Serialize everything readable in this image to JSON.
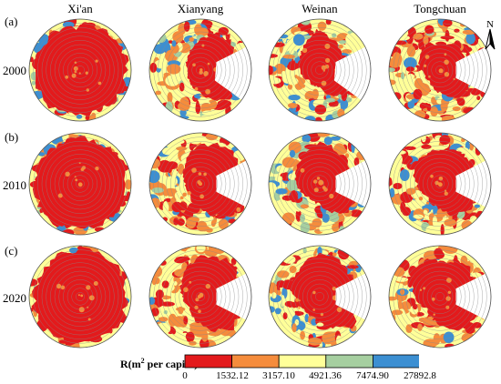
{
  "columns": [
    "Xi'an",
    "Xianyang",
    "Weinan",
    "Tongchuan"
  ],
  "rows": [
    {
      "tag": "(a)",
      "year": "2000"
    },
    {
      "tag": "(b)",
      "year": "2010"
    },
    {
      "tag": "(c)",
      "year": "2020"
    }
  ],
  "north_arrow": {
    "letter": "N"
  },
  "legend": {
    "title_main": "R(m",
    "title_sup": "2",
    "title_rest": " per capita)",
    "breaks": [
      "0",
      "1532.12",
      "3157.10",
      "4921.36",
      "7474.90",
      "27892.8"
    ],
    "colors": [
      "#e31a1c",
      "#f58c3c",
      "#ffff99",
      "#a6cfa0",
      "#3c8fd2"
    ]
  },
  "map_colors": {
    "ring_line": "#888888",
    "base": "#e31a1c"
  },
  "maps": [
    {
      "city": "Xi'an",
      "year": "2000",
      "red_radius": [
        0.92,
        0.9,
        0.88,
        0.93,
        0.87,
        0.9,
        0.85,
        0.92
      ],
      "patch_seed": 3,
      "blue_share": 0.25,
      "empty_sector": 0
    },
    {
      "city": "Xianyang",
      "year": "2000",
      "red_radius": [
        0.55,
        0.8,
        0.45,
        0.3,
        0.25,
        0.35,
        0.6,
        0.85
      ],
      "patch_seed": 11,
      "blue_share": 0.15,
      "empty_sector": 0.35
    },
    {
      "city": "Weinan",
      "year": "2000",
      "red_radius": [
        0.6,
        0.7,
        0.35,
        0.3,
        0.4,
        0.5,
        0.75,
        0.55
      ],
      "patch_seed": 17,
      "blue_share": 0.3,
      "empty_sector": 0.35
    },
    {
      "city": "Tongchuan",
      "year": "2000",
      "red_radius": [
        0.5,
        0.7,
        0.45,
        0.3,
        0.35,
        0.55,
        0.5,
        0.6
      ],
      "patch_seed": 23,
      "blue_share": 0.15,
      "empty_sector": 0.3
    },
    {
      "city": "Xi'an",
      "year": "2010",
      "red_radius": [
        0.9,
        0.92,
        0.9,
        0.93,
        0.9,
        0.88,
        0.9,
        0.92
      ],
      "patch_seed": 5,
      "blue_share": 0.3,
      "empty_sector": 0
    },
    {
      "city": "Xianyang",
      "year": "2010",
      "red_radius": [
        0.7,
        0.85,
        0.5,
        0.3,
        0.3,
        0.45,
        0.75,
        0.9
      ],
      "patch_seed": 13,
      "blue_share": 0.1,
      "empty_sector": 0.3
    },
    {
      "city": "Weinan",
      "year": "2010",
      "red_radius": [
        0.7,
        0.8,
        0.4,
        0.35,
        0.45,
        0.6,
        0.8,
        0.7
      ],
      "patch_seed": 19,
      "blue_share": 0.3,
      "empty_sector": 0.3
    },
    {
      "city": "Tongchuan",
      "year": "2010",
      "red_radius": [
        0.6,
        0.8,
        0.5,
        0.35,
        0.45,
        0.65,
        0.65,
        0.75
      ],
      "patch_seed": 29,
      "blue_share": 0.2,
      "empty_sector": 0.3
    },
    {
      "city": "Xi'an",
      "year": "2020",
      "red_radius": [
        0.93,
        0.92,
        0.93,
        0.95,
        0.92,
        0.9,
        0.93,
        0.94
      ],
      "patch_seed": 7,
      "blue_share": 0.15,
      "empty_sector": 0
    },
    {
      "city": "Xianyang",
      "year": "2020",
      "red_radius": [
        0.75,
        0.9,
        0.55,
        0.3,
        0.35,
        0.5,
        0.8,
        0.9
      ],
      "patch_seed": 31,
      "blue_share": 0.05,
      "empty_sector": 0.3
    },
    {
      "city": "Weinan",
      "year": "2020",
      "red_radius": [
        0.75,
        0.85,
        0.45,
        0.4,
        0.5,
        0.65,
        0.85,
        0.75
      ],
      "patch_seed": 37,
      "blue_share": 0.25,
      "empty_sector": 0.3
    },
    {
      "city": "Tongchuan",
      "year": "2020",
      "red_radius": [
        0.7,
        0.85,
        0.55,
        0.35,
        0.5,
        0.7,
        0.7,
        0.8
      ],
      "patch_seed": 41,
      "blue_share": 0.1,
      "empty_sector": 0.3
    }
  ]
}
